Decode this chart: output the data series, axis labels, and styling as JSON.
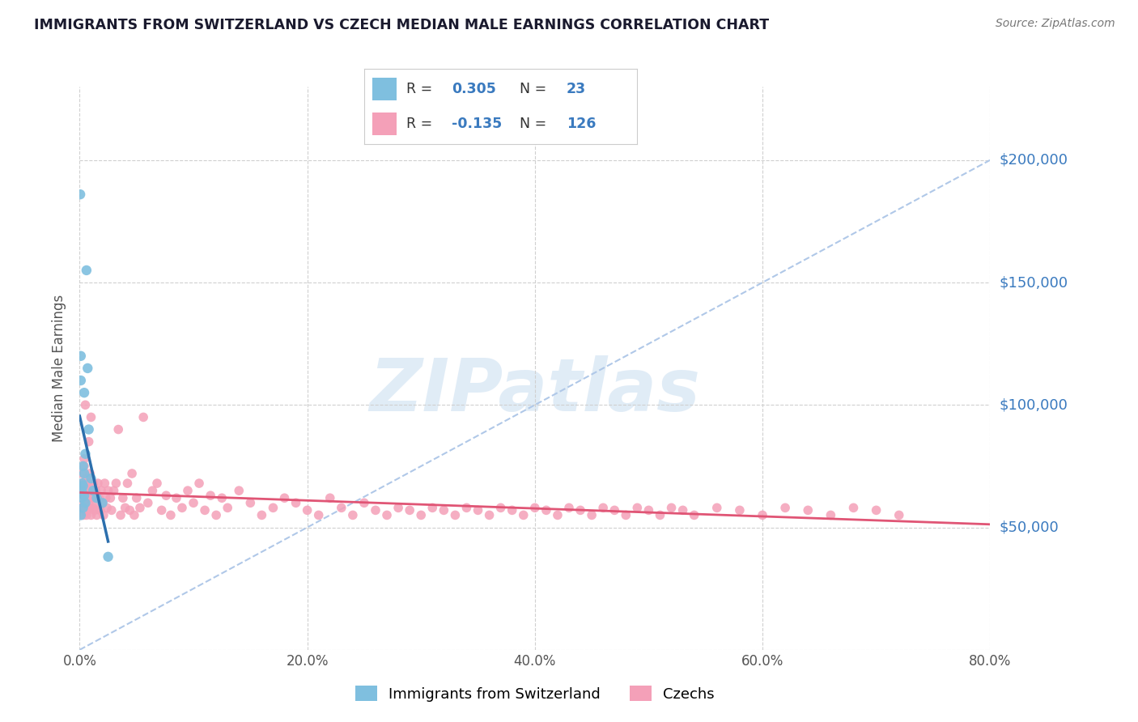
{
  "title": "IMMIGRANTS FROM SWITZERLAND VS CZECH MEDIAN MALE EARNINGS CORRELATION CHART",
  "source": "Source: ZipAtlas.com",
  "ylabel": "Median Male Earnings",
  "xlim": [
    0.0,
    0.8
  ],
  "ylim": [
    0,
    230000
  ],
  "yticks": [
    0,
    50000,
    100000,
    150000,
    200000
  ],
  "ytick_labels": [
    "",
    "$50,000",
    "$100,000",
    "$150,000",
    "$200,000"
  ],
  "xtick_labels": [
    "0.0%",
    "20.0%",
    "40.0%",
    "60.0%",
    "80.0%"
  ],
  "xticks": [
    0.0,
    0.2,
    0.4,
    0.6,
    0.8
  ],
  "swiss_color": "#7fbfdf",
  "czech_color": "#f4a0b8",
  "swiss_line_color": "#2c6fad",
  "czech_line_color": "#e05575",
  "diag_color": "#b0c8e8",
  "swiss_R": 0.305,
  "swiss_N": 23,
  "czech_R": -0.135,
  "czech_N": 126,
  "watermark": "ZIPatlas",
  "watermark_color": "#c8ddf0",
  "swiss_label": "Immigrants from Switzerland",
  "czech_label": "Czechs",
  "title_color": "#1a1a2e",
  "source_color": "#777777",
  "stat_color": "#3a7abf",
  "swiss_x": [
    0.0005,
    0.001,
    0.001,
    0.001,
    0.002,
    0.002,
    0.002,
    0.003,
    0.003,
    0.003,
    0.004,
    0.004,
    0.004,
    0.005,
    0.005,
    0.006,
    0.007,
    0.008,
    0.01,
    0.012,
    0.015,
    0.02,
    0.025
  ],
  "swiss_y": [
    186000,
    110000,
    120000,
    55000,
    68000,
    65000,
    62000,
    75000,
    67000,
    58000,
    105000,
    72000,
    63000,
    80000,
    60000,
    155000,
    115000,
    90000,
    70000,
    65000,
    62000,
    60000,
    38000
  ],
  "czech_x": [
    0.001,
    0.002,
    0.002,
    0.003,
    0.003,
    0.003,
    0.004,
    0.004,
    0.004,
    0.005,
    0.005,
    0.005,
    0.006,
    0.006,
    0.006,
    0.007,
    0.007,
    0.007,
    0.008,
    0.008,
    0.009,
    0.009,
    0.01,
    0.01,
    0.011,
    0.012,
    0.012,
    0.013,
    0.013,
    0.014,
    0.015,
    0.015,
    0.016,
    0.017,
    0.018,
    0.019,
    0.02,
    0.021,
    0.022,
    0.023,
    0.024,
    0.025,
    0.027,
    0.028,
    0.03,
    0.032,
    0.034,
    0.036,
    0.038,
    0.04,
    0.042,
    0.044,
    0.046,
    0.048,
    0.05,
    0.053,
    0.056,
    0.06,
    0.064,
    0.068,
    0.072,
    0.076,
    0.08,
    0.085,
    0.09,
    0.095,
    0.1,
    0.105,
    0.11,
    0.115,
    0.12,
    0.125,
    0.13,
    0.14,
    0.15,
    0.16,
    0.17,
    0.18,
    0.19,
    0.2,
    0.21,
    0.22,
    0.23,
    0.24,
    0.25,
    0.26,
    0.27,
    0.28,
    0.29,
    0.3,
    0.31,
    0.32,
    0.33,
    0.34,
    0.35,
    0.36,
    0.37,
    0.38,
    0.39,
    0.4,
    0.41,
    0.42,
    0.43,
    0.44,
    0.45,
    0.46,
    0.47,
    0.48,
    0.49,
    0.5,
    0.51,
    0.52,
    0.53,
    0.54,
    0.56,
    0.58,
    0.6,
    0.62,
    0.64,
    0.66,
    0.68,
    0.7,
    0.72,
    0.005,
    0.008,
    0.01,
    0.004
  ],
  "czech_y": [
    65000,
    72000,
    58000,
    68000,
    55000,
    63000,
    60000,
    75000,
    57000,
    65000,
    58000,
    62000,
    70000,
    55000,
    68000,
    62000,
    57000,
    65000,
    60000,
    68000,
    58000,
    72000,
    62000,
    55000,
    65000,
    58000,
    68000,
    57000,
    62000,
    65000,
    60000,
    55000,
    68000,
    62000,
    57000,
    65000,
    60000,
    55000,
    68000,
    62000,
    58000,
    65000,
    62000,
    57000,
    65000,
    68000,
    90000,
    55000,
    62000,
    58000,
    68000,
    57000,
    72000,
    55000,
    62000,
    58000,
    95000,
    60000,
    65000,
    68000,
    57000,
    63000,
    55000,
    62000,
    58000,
    65000,
    60000,
    68000,
    57000,
    63000,
    55000,
    62000,
    58000,
    65000,
    60000,
    55000,
    58000,
    62000,
    60000,
    57000,
    55000,
    62000,
    58000,
    55000,
    60000,
    57000,
    55000,
    58000,
    57000,
    55000,
    58000,
    57000,
    55000,
    58000,
    57000,
    55000,
    58000,
    57000,
    55000,
    58000,
    57000,
    55000,
    58000,
    57000,
    55000,
    58000,
    57000,
    55000,
    58000,
    57000,
    55000,
    58000,
    57000,
    55000,
    58000,
    57000,
    55000,
    58000,
    57000,
    55000,
    58000,
    57000,
    55000,
    100000,
    85000,
    95000,
    78000
  ]
}
